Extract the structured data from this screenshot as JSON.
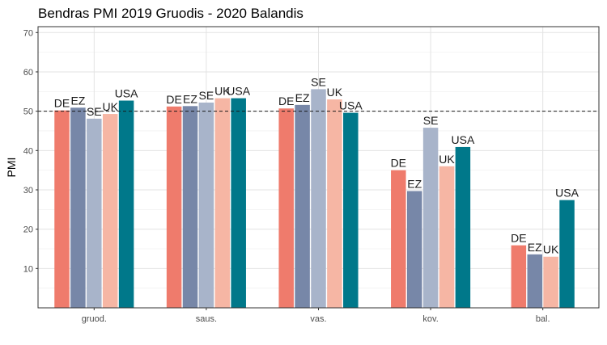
{
  "chart_data": {
    "type": "bar",
    "title": "Bendras PMI 2019 Gruodis - 2020 Balandis",
    "xlabel": "",
    "ylabel": "PMI",
    "ylim": [
      0,
      71.5
    ],
    "yticks": [
      10,
      20,
      30,
      40,
      50,
      60,
      70
    ],
    "reference_line": 50,
    "grid": true,
    "legend": "none",
    "categories": [
      "gruod.",
      "saus.",
      "vas.",
      "kov.",
      "bal."
    ],
    "series": [
      {
        "name": "DE",
        "color": "#ef7b6c",
        "values": [
          50.2,
          51.2,
          50.7,
          35.0,
          15.9
        ]
      },
      {
        "name": "EZ",
        "color": "#7787a8",
        "values": [
          50.9,
          51.3,
          51.6,
          29.7,
          13.6
        ]
      },
      {
        "name": "SE",
        "color": "#a8b4ca",
        "values": [
          48.1,
          52.2,
          55.6,
          45.8,
          null
        ]
      },
      {
        "name": "UK",
        "color": "#f6b6a4",
        "values": [
          49.3,
          53.3,
          53.0,
          36.0,
          13.0
        ]
      },
      {
        "name": "USA",
        "color": "#00788a",
        "values": [
          52.7,
          53.3,
          49.6,
          40.9,
          27.4
        ]
      }
    ]
  }
}
